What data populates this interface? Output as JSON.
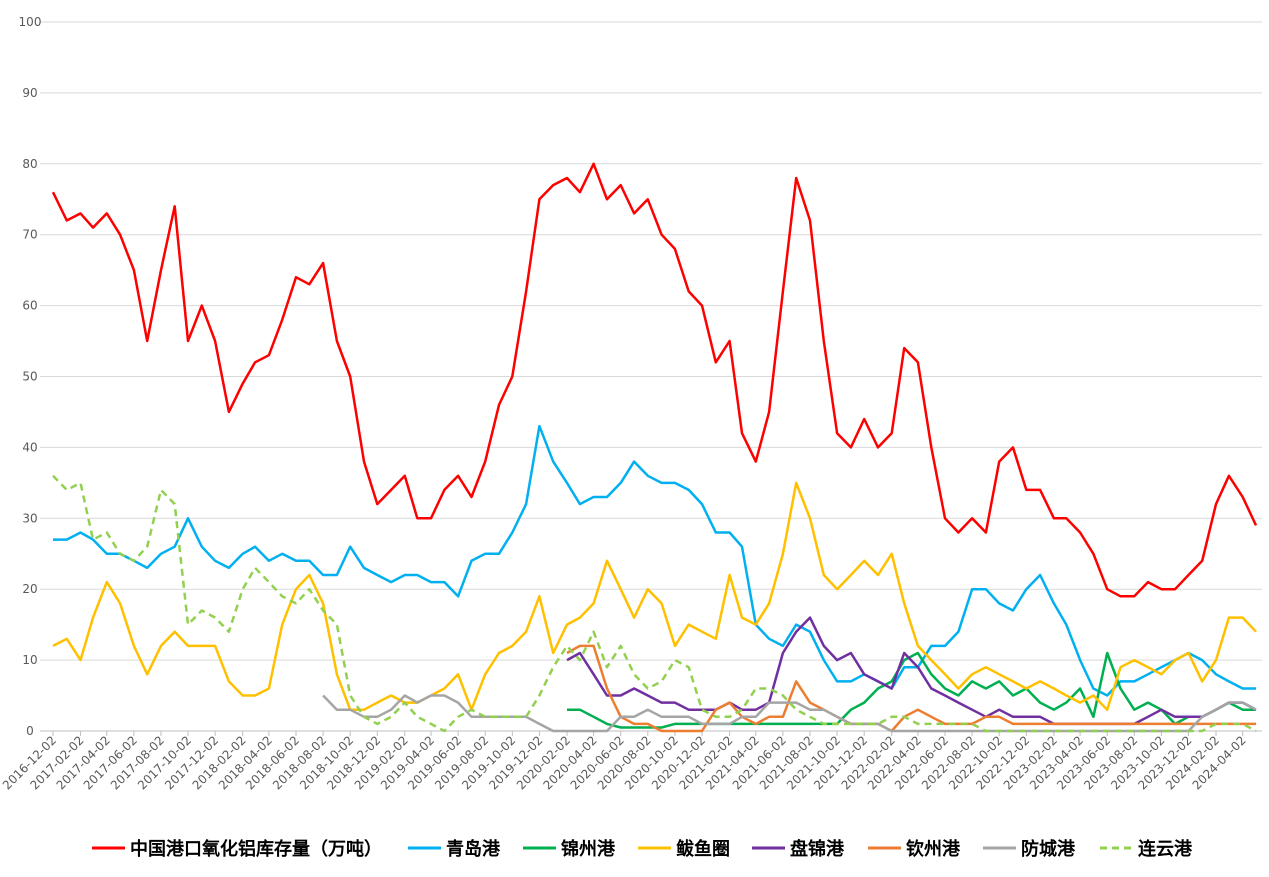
{
  "chart_data": {
    "type": "line",
    "x": [
      "2016-12-02",
      "2017-01-02",
      "2017-02-02",
      "2017-03-02",
      "2017-04-02",
      "2017-05-02",
      "2017-06-02",
      "2017-07-02",
      "2017-08-02",
      "2017-09-02",
      "2017-10-02",
      "2017-11-02",
      "2017-12-02",
      "2018-01-02",
      "2018-02-02",
      "2018-03-02",
      "2018-04-02",
      "2018-05-02",
      "2018-06-02",
      "2018-07-02",
      "2018-08-02",
      "2018-09-02",
      "2018-10-02",
      "2018-11-02",
      "2018-12-02",
      "2019-01-02",
      "2019-02-02",
      "2019-03-02",
      "2019-04-02",
      "2019-05-02",
      "2019-06-02",
      "2019-07-02",
      "2019-08-02",
      "2019-09-02",
      "2019-10-02",
      "2019-11-02",
      "2019-12-02",
      "2020-01-02",
      "2020-02-02",
      "2020-03-02",
      "2020-04-02",
      "2020-05-02",
      "2020-06-02",
      "2020-07-02",
      "2020-08-02",
      "2020-09-02",
      "2020-10-02",
      "2020-11-02",
      "2020-12-02",
      "2021-01-02",
      "2021-02-02",
      "2021-03-02",
      "2021-04-02",
      "2021-05-02",
      "2021-06-02",
      "2021-07-02",
      "2021-08-02",
      "2021-09-02",
      "2021-10-02",
      "2021-11-02",
      "2021-12-02",
      "2022-01-02",
      "2022-02-02",
      "2022-03-02",
      "2022-04-02",
      "2022-05-02",
      "2022-06-02",
      "2022-07-02",
      "2022-08-02",
      "2022-09-02",
      "2022-10-02",
      "2022-11-02",
      "2022-12-02",
      "2023-01-02",
      "2023-02-02",
      "2023-03-02",
      "2023-04-02",
      "2023-05-02",
      "2023-06-02",
      "2023-07-02",
      "2023-08-02",
      "2023-09-02",
      "2023-10-02",
      "2023-11-02",
      "2023-12-02",
      "2024-01-02",
      "2024-02-02",
      "2024-03-02",
      "2024-04-02",
      "2024-05-02"
    ],
    "xlim": [
      "2016-12-02",
      "2024-05-02"
    ],
    "xticks": [
      "2016-12-02",
      "2017-02-02",
      "2017-04-02",
      "2017-06-02",
      "2017-08-02",
      "2017-10-02",
      "2017-12-02",
      "2018-02-02",
      "2018-04-02",
      "2018-06-02",
      "2018-08-02",
      "2018-10-02",
      "2018-12-02",
      "2019-02-02",
      "2019-04-02",
      "2019-06-02",
      "2019-08-02",
      "2019-10-02",
      "2019-12-02",
      "2020-02-02",
      "2020-04-02",
      "2020-06-02",
      "2020-08-02",
      "2020-10-02",
      "2020-12-02",
      "2021-02-02",
      "2021-04-02",
      "2021-06-02",
      "2021-08-02",
      "2021-10-02",
      "2021-12-02",
      "2022-02-02",
      "2022-04-02",
      "2022-06-02",
      "2022-08-02",
      "2022-10-02",
      "2022-12-02",
      "2023-02-02",
      "2023-04-02",
      "2023-06-02",
      "2023-08-02",
      "2023-10-02",
      "2023-12-02",
      "2024-02-02",
      "2024-04-02"
    ],
    "ylim": [
      0,
      100
    ],
    "yticks": [
      0,
      10,
      20,
      30,
      40,
      50,
      60,
      70,
      80,
      90,
      100
    ],
    "grid": true,
    "series": [
      {
        "name": "中国港口氧化铝库存量（万吨）",
        "color": "#ff0000",
        "values": [
          76,
          72,
          73,
          71,
          73,
          70,
          65,
          55,
          65,
          74,
          55,
          60,
          55,
          45,
          49,
          52,
          53,
          58,
          64,
          63,
          66,
          55,
          50,
          38,
          32,
          34,
          36,
          30,
          30,
          34,
          36,
          33,
          38,
          46,
          50,
          62,
          75,
          77,
          78,
          76,
          80,
          75,
          77,
          73,
          75,
          70,
          68,
          62,
          60,
          52,
          55,
          42,
          38,
          45,
          62,
          78,
          72,
          55,
          42,
          40,
          44,
          40,
          42,
          54,
          52,
          40,
          30,
          28,
          30,
          28,
          38,
          40,
          34,
          34,
          30,
          30,
          28,
          25,
          20,
          19,
          19,
          21,
          20,
          20,
          22,
          24,
          32,
          36,
          33,
          29
        ]
      },
      {
        "name": "青岛港",
        "color": "#00b0f0",
        "values": [
          27,
          27,
          28,
          27,
          25,
          25,
          24,
          23,
          25,
          26,
          30,
          26,
          24,
          23,
          25,
          26,
          24,
          25,
          24,
          24,
          22,
          22,
          26,
          23,
          22,
          21,
          22,
          22,
          21,
          21,
          19,
          24,
          25,
          25,
          28,
          32,
          43,
          38,
          35,
          32,
          33,
          33,
          35,
          38,
          36,
          35,
          35,
          34,
          32,
          28,
          28,
          26,
          15,
          13,
          12,
          15,
          14,
          10,
          7,
          7,
          8,
          7,
          6,
          9,
          9,
          12,
          12,
          14,
          20,
          20,
          18,
          17,
          20,
          22,
          18,
          15,
          10,
          6,
          5,
          7,
          7,
          8,
          9,
          10,
          11,
          10,
          8,
          7,
          6,
          6
        ]
      },
      {
        "name": "锦州港",
        "color": "#00b050",
        "values": [
          null,
          null,
          null,
          null,
          null,
          null,
          null,
          null,
          null,
          null,
          null,
          null,
          null,
          null,
          null,
          null,
          null,
          null,
          null,
          null,
          null,
          null,
          null,
          null,
          null,
          null,
          null,
          null,
          null,
          null,
          null,
          null,
          null,
          null,
          null,
          null,
          null,
          null,
          3,
          3,
          2,
          1,
          0.5,
          0.5,
          0.5,
          0.5,
          1,
          1,
          1,
          1,
          1,
          1,
          1,
          1,
          1,
          1,
          1,
          1,
          1,
          3,
          4,
          6,
          7,
          10,
          11,
          8,
          6,
          5,
          7,
          6,
          7,
          5,
          6,
          4,
          3,
          4,
          6,
          2,
          11,
          6,
          3,
          4,
          3,
          1,
          2,
          2,
          3,
          4,
          3,
          3
        ]
      },
      {
        "name": "鲅鱼圈",
        "color": "#ffc000",
        "values": [
          12,
          13,
          10,
          16,
          21,
          18,
          12,
          8,
          12,
          14,
          12,
          12,
          12,
          7,
          5,
          5,
          6,
          15,
          20,
          22,
          18,
          8,
          3,
          3,
          4,
          5,
          4,
          4,
          5,
          6,
          8,
          3,
          8,
          11,
          12,
          14,
          19,
          11,
          15,
          16,
          18,
          24,
          20,
          16,
          20,
          18,
          12,
          15,
          14,
          13,
          22,
          16,
          15,
          18,
          25,
          35,
          30,
          22,
          20,
          22,
          24,
          22,
          25,
          18,
          12,
          10,
          8,
          6,
          8,
          9,
          8,
          7,
          6,
          7,
          6,
          5,
          4,
          5,
          3,
          9,
          10,
          9,
          8,
          10,
          11,
          7,
          10,
          16,
          16,
          14
        ]
      },
      {
        "name": "盘锦港",
        "color": "#7030a0",
        "values": [
          null,
          null,
          null,
          null,
          null,
          null,
          null,
          null,
          null,
          null,
          null,
          null,
          null,
          null,
          null,
          null,
          null,
          null,
          null,
          null,
          null,
          null,
          null,
          null,
          null,
          null,
          null,
          null,
          null,
          null,
          null,
          null,
          null,
          null,
          null,
          null,
          null,
          null,
          10,
          11,
          8,
          5,
          5,
          6,
          5,
          4,
          4,
          3,
          3,
          3,
          4,
          3,
          3,
          4,
          11,
          14,
          16,
          12,
          10,
          11,
          8,
          7,
          6,
          11,
          9,
          6,
          5,
          4,
          3,
          2,
          3,
          2,
          2,
          2,
          1,
          1,
          1,
          1,
          1,
          1,
          1,
          2,
          3,
          2,
          2,
          2,
          3,
          4,
          4,
          3
        ]
      },
      {
        "name": "钦州港",
        "color": "#ed7d31",
        "values": [
          null,
          null,
          null,
          null,
          null,
          null,
          null,
          null,
          null,
          null,
          null,
          null,
          null,
          null,
          null,
          null,
          null,
          null,
          null,
          null,
          null,
          null,
          null,
          null,
          null,
          null,
          null,
          null,
          null,
          null,
          null,
          null,
          null,
          null,
          null,
          null,
          null,
          null,
          11,
          12,
          12,
          6,
          2,
          1,
          1,
          0,
          0,
          0,
          0,
          3,
          4,
          2,
          1,
          2,
          2,
          7,
          4,
          3,
          2,
          1,
          1,
          1,
          0,
          2,
          3,
          2,
          1,
          1,
          1,
          2,
          2,
          1,
          1,
          1,
          1,
          1,
          1,
          1,
          1,
          1,
          1,
          1,
          1,
          1,
          1,
          1,
          1,
          1,
          1,
          1
        ]
      },
      {
        "name": "防城港",
        "color": "#a5a5a5",
        "values": [
          null,
          null,
          null,
          null,
          null,
          null,
          null,
          null,
          null,
          null,
          null,
          null,
          null,
          null,
          null,
          null,
          null,
          null,
          null,
          null,
          5,
          3,
          3,
          2,
          2,
          3,
          5,
          4,
          5,
          5,
          4,
          2,
          2,
          2,
          2,
          2,
          1,
          0,
          0,
          0,
          0,
          0,
          2,
          2,
          3,
          2,
          2,
          2,
          1,
          1,
          1,
          2,
          2,
          4,
          4,
          4,
          3,
          3,
          2,
          1,
          1,
          1,
          0,
          0,
          0,
          0,
          0,
          0,
          0,
          0,
          0,
          0,
          0,
          0,
          0,
          0,
          0,
          0,
          0,
          0,
          0,
          0,
          0,
          0,
          0,
          2,
          3,
          4,
          4,
          3
        ]
      },
      {
        "name": "连云港",
        "color": "#92d050",
        "dashed": true,
        "values": [
          36,
          34,
          35,
          27,
          28,
          25,
          24,
          26,
          34,
          32,
          15,
          17,
          16,
          14,
          20,
          23,
          21,
          19,
          18,
          20,
          17,
          15,
          5,
          2,
          1,
          2,
          4,
          2,
          1,
          0,
          2,
          3,
          2,
          2,
          2,
          2,
          5,
          9,
          12,
          10,
          14,
          9,
          12,
          8,
          6,
          7,
          10,
          9,
          3,
          2,
          2,
          3,
          6,
          6,
          5,
          3,
          2,
          1,
          1,
          1,
          1,
          1,
          2,
          2,
          1,
          1,
          1,
          1,
          1,
          0,
          0,
          0,
          0,
          0,
          0,
          0,
          0,
          0,
          0,
          0,
          0,
          0,
          0,
          0,
          0,
          0,
          1,
          1,
          1,
          0
        ]
      }
    ]
  }
}
